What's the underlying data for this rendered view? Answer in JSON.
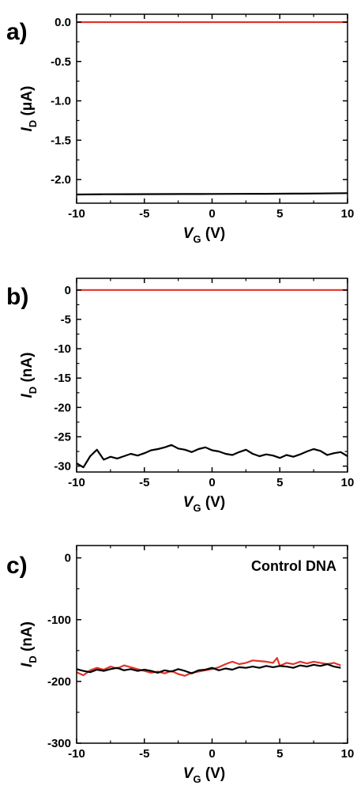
{
  "chart_data": [
    {
      "panel": "a)",
      "type": "line",
      "xlim": [
        -10,
        10
      ],
      "ylim": [
        -2.3,
        0.1
      ],
      "xticks": [
        -10,
        -5,
        0,
        5,
        10
      ],
      "yticks": [
        0,
        -0.5,
        -1,
        -1.5,
        -2
      ],
      "ytick_labels": [
        "0.0",
        "-0.5",
        "-1.0",
        "-1.5",
        "-2.0"
      ],
      "xtick_labels": [
        "-10",
        "-5",
        "0",
        "5",
        "10"
      ],
      "xlabel": {
        "main": "V",
        "sub": "G",
        "unit": " (V)"
      },
      "ylabel": {
        "main": "I",
        "sub": "D",
        "unit": " (μA)"
      },
      "annotation": "",
      "series": [
        {
          "color": "#e0332b",
          "x": [
            -10,
            10
          ],
          "y": [
            0,
            0
          ]
        },
        {
          "color": "#000000",
          "x": [
            -10,
            -8,
            -6,
            -4,
            -2,
            0,
            2,
            4,
            6,
            8,
            10
          ],
          "y": [
            -2.19,
            -2.187,
            -2.186,
            -2.185,
            -2.184,
            -2.183,
            -2.182,
            -2.18,
            -2.178,
            -2.176,
            -2.172
          ]
        }
      ]
    },
    {
      "panel": "b)",
      "type": "line",
      "xlim": [
        -10,
        10
      ],
      "ylim": [
        -31,
        2
      ],
      "xticks": [
        -10,
        -5,
        0,
        5,
        10
      ],
      "yticks": [
        0,
        -5,
        -10,
        -15,
        -20,
        -25,
        -30
      ],
      "ytick_labels": [
        "0",
        "-5",
        "-10",
        "-15",
        "-20",
        "-25",
        "-30"
      ],
      "xtick_labels": [
        "-10",
        "-5",
        "0",
        "5",
        "10"
      ],
      "xlabel": {
        "main": "V",
        "sub": "G",
        "unit": " (V)"
      },
      "ylabel": {
        "main": "I",
        "sub": "D",
        "unit": " (nA)"
      },
      "annotation": "",
      "series": [
        {
          "color": "#e0332b",
          "x": [
            -10,
            10
          ],
          "y": [
            0,
            0
          ]
        },
        {
          "color": "#000000",
          "x": [
            -10,
            -9.5,
            -9,
            -8.5,
            -8,
            -7.5,
            -7,
            -6.5,
            -6,
            -5.5,
            -5,
            -4.5,
            -4,
            -3.5,
            -3,
            -2.5,
            -2,
            -1.5,
            -1,
            -0.5,
            0,
            0.5,
            1,
            1.5,
            2,
            2.5,
            3,
            3.5,
            4,
            4.5,
            5,
            5.5,
            6,
            6.5,
            7,
            7.5,
            8,
            8.5,
            9,
            9.5,
            10
          ],
          "y": [
            -29.5,
            -30.2,
            -28.3,
            -27.2,
            -28.9,
            -28.4,
            -28.7,
            -28.3,
            -27.9,
            -28.2,
            -27.8,
            -27.3,
            -27.1,
            -26.8,
            -26.4,
            -27.0,
            -27.2,
            -27.6,
            -27.1,
            -26.8,
            -27.3,
            -27.5,
            -27.9,
            -28.1,
            -27.6,
            -27.2,
            -27.9,
            -28.3,
            -28.0,
            -28.2,
            -28.6,
            -28.1,
            -28.4,
            -28.0,
            -27.5,
            -27.1,
            -27.4,
            -28.1,
            -27.8,
            -27.6,
            -28.3
          ]
        }
      ]
    },
    {
      "panel": "c)",
      "type": "line",
      "xlim": [
        -10,
        10
      ],
      "ylim": [
        -300,
        20
      ],
      "xticks": [
        -10,
        -5,
        0,
        5,
        10
      ],
      "yticks": [
        0,
        -100,
        -200,
        -300
      ],
      "ytick_labels": [
        "0",
        "-100",
        "-200",
        "-300"
      ],
      "xtick_labels": [
        "-10",
        "-5",
        "0",
        "5",
        "10"
      ],
      "xlabel": {
        "main": "V",
        "sub": "G",
        "unit": " (V)"
      },
      "ylabel": {
        "main": "I",
        "sub": "D",
        "unit": " (nA)"
      },
      "annotation": "Control DNA",
      "series": [
        {
          "color": "#e0332b",
          "x": [
            -10,
            -9.5,
            -9,
            -8.5,
            -8,
            -7.5,
            -7,
            -6.5,
            -6,
            -5.5,
            -5,
            -4.5,
            -4,
            -3.5,
            -3,
            -2.5,
            -2,
            -1.5,
            -1,
            -0.5,
            0,
            0.5,
            1,
            1.5,
            2,
            2.5,
            3,
            3.5,
            4,
            4.5,
            4.8,
            5,
            5.5,
            6,
            6.5,
            7,
            7.5,
            8,
            8.5,
            9,
            9.5
          ],
          "y": [
            -185,
            -190,
            -182,
            -178,
            -181,
            -176,
            -179,
            -174,
            -177,
            -180,
            -183,
            -186,
            -184,
            -187,
            -183,
            -188,
            -191,
            -186,
            -184,
            -182,
            -180,
            -177,
            -172,
            -168,
            -172,
            -170,
            -166,
            -167,
            -168,
            -170,
            -162,
            -175,
            -170,
            -172,
            -168,
            -171,
            -168,
            -170,
            -172,
            -170,
            -174
          ]
        },
        {
          "color": "#000000",
          "x": [
            -10,
            -9.5,
            -9,
            -8.5,
            -8,
            -7.5,
            -7,
            -6.5,
            -6,
            -5.5,
            -5,
            -4.5,
            -4,
            -3.5,
            -3,
            -2.5,
            -2,
            -1.5,
            -1,
            -0.5,
            0,
            0.5,
            1,
            1.5,
            2,
            2.5,
            3,
            3.5,
            4,
            4.5,
            5,
            5.5,
            6,
            6.5,
            7,
            7.5,
            8,
            8.5,
            9,
            9.5
          ],
          "y": [
            -180,
            -183,
            -185,
            -181,
            -183,
            -180,
            -178,
            -182,
            -180,
            -183,
            -181,
            -183,
            -186,
            -182,
            -184,
            -180,
            -183,
            -187,
            -182,
            -181,
            -178,
            -182,
            -179,
            -181,
            -177,
            -178,
            -176,
            -178,
            -175,
            -177,
            -175,
            -176,
            -178,
            -174,
            -176,
            -173,
            -175,
            -172,
            -176,
            -178
          ]
        }
      ]
    }
  ]
}
